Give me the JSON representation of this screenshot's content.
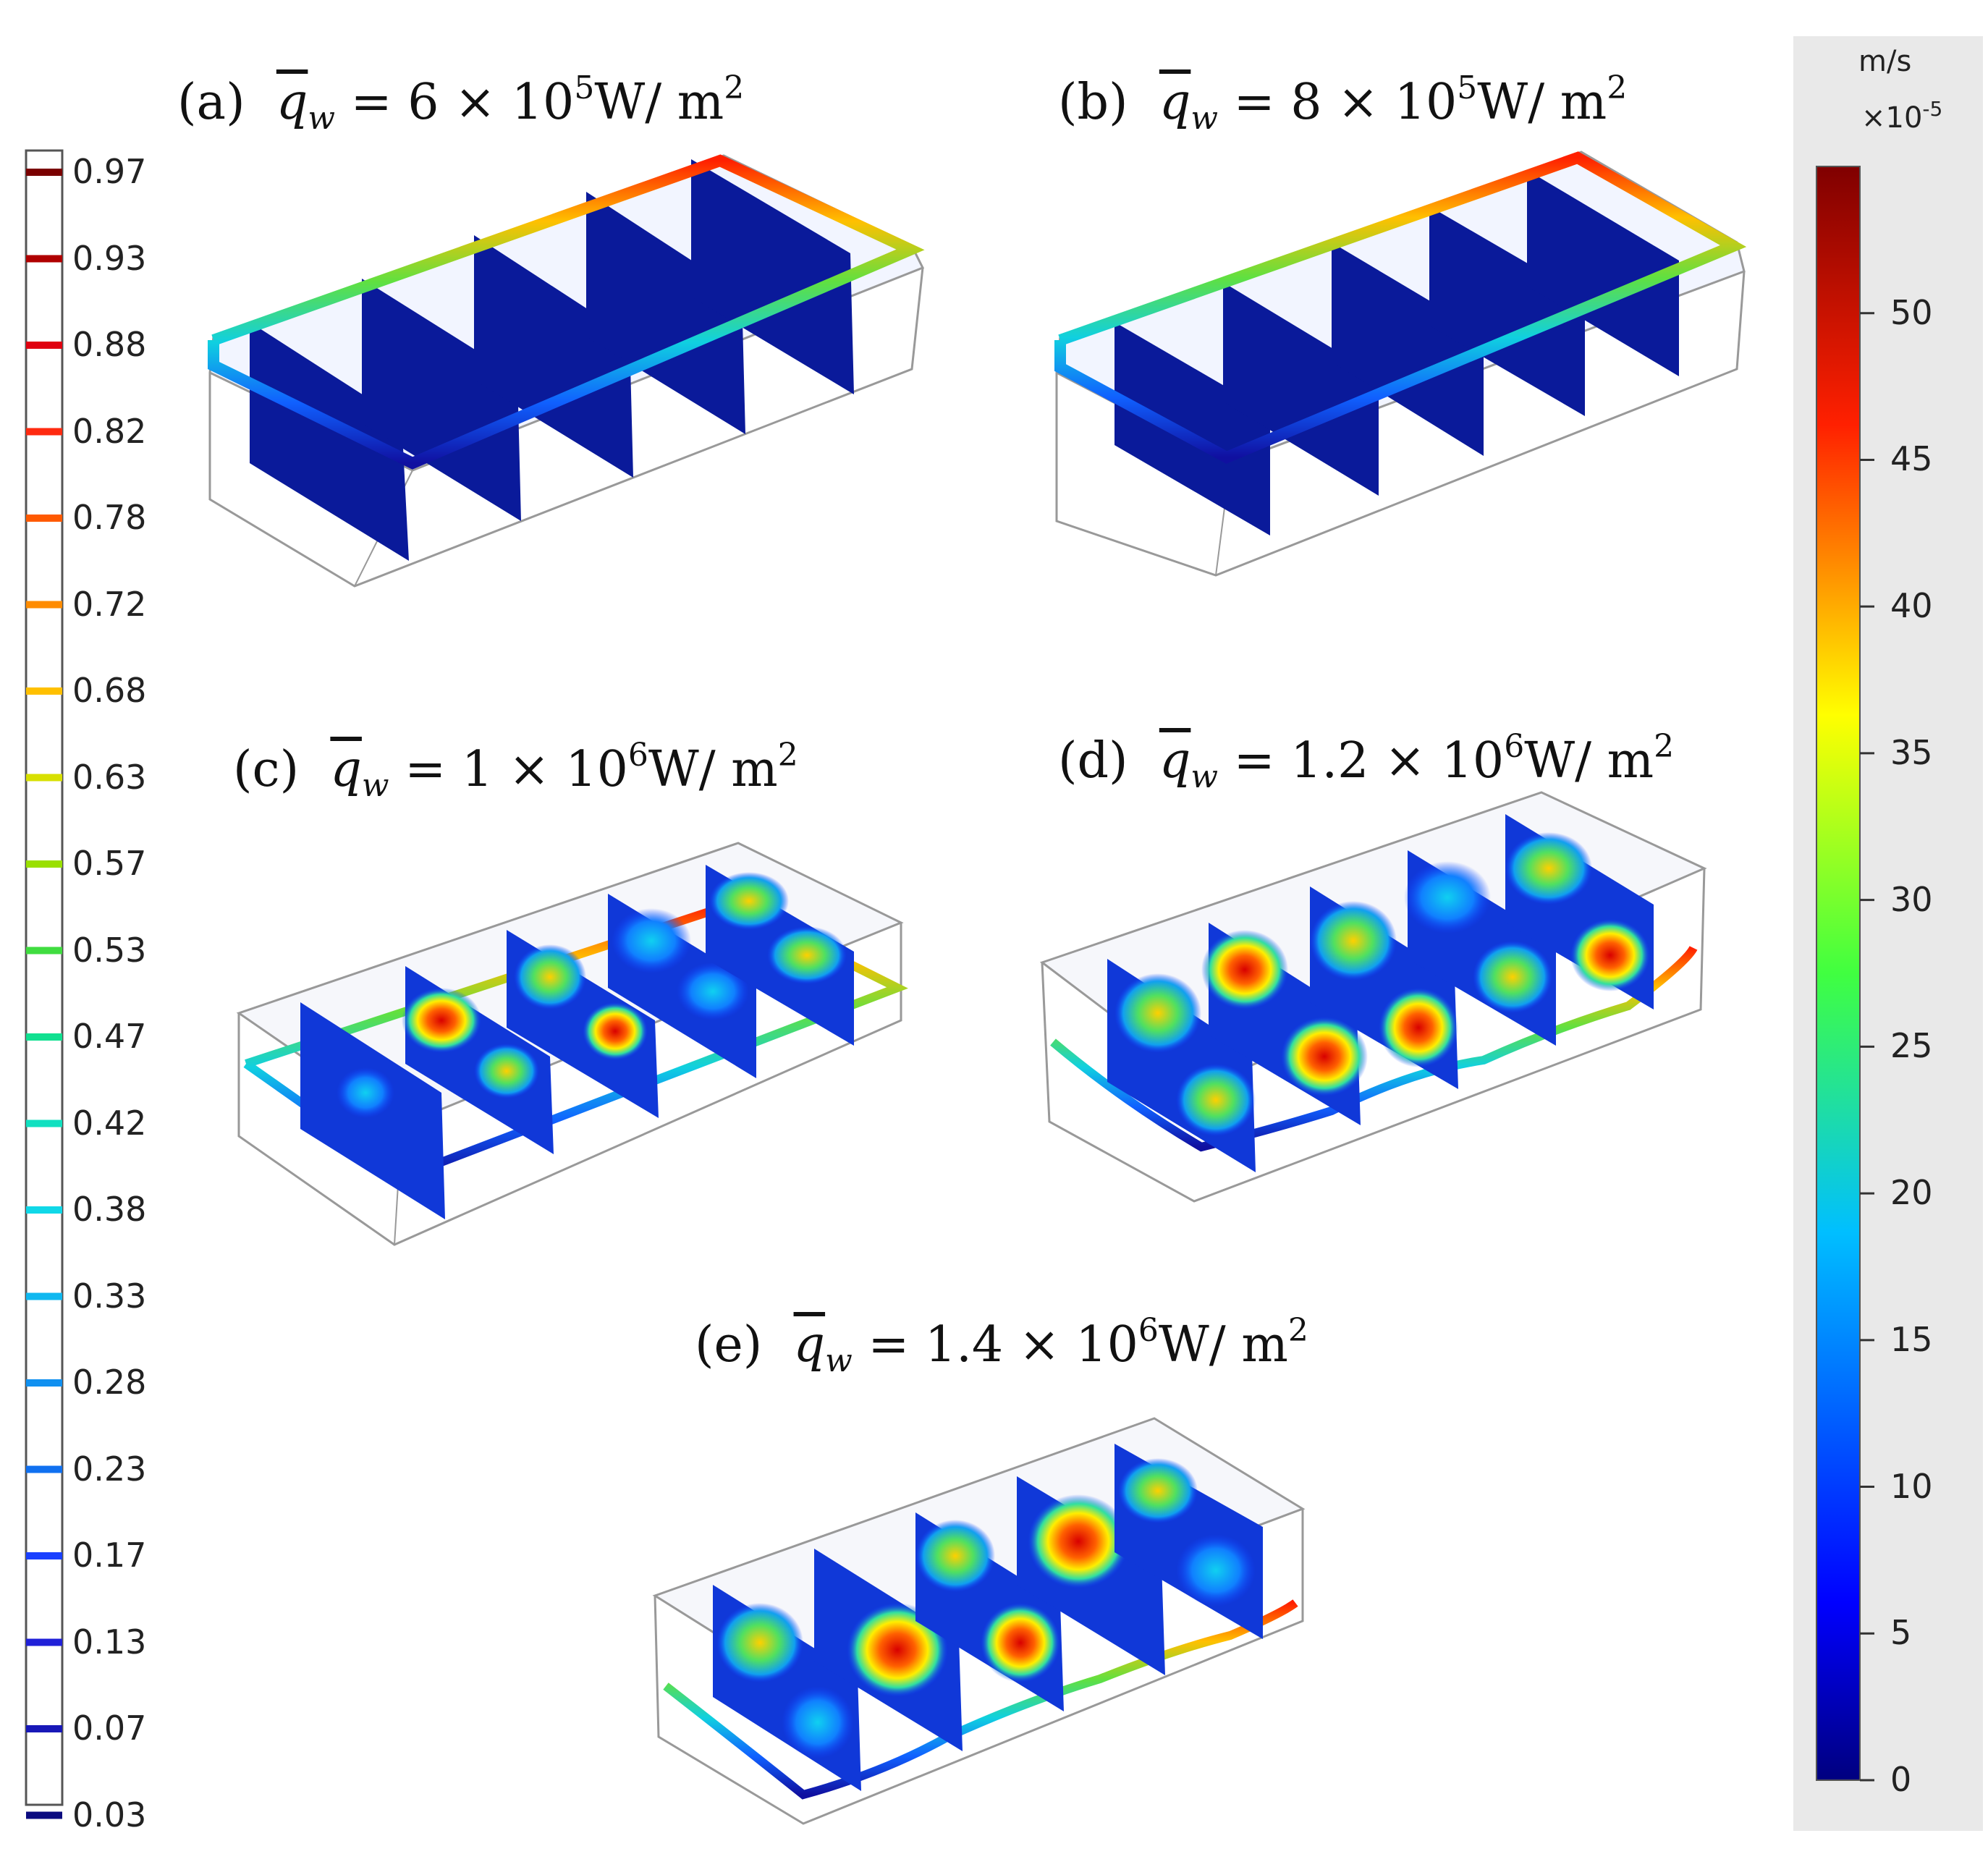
{
  "panels": [
    {
      "id": "a",
      "label": "(a)",
      "q_mantissa": "6",
      "q_exp": "5",
      "state": "top-band"
    },
    {
      "id": "b",
      "label": "(b)",
      "q_mantissa": "8",
      "q_exp": "5",
      "state": "top-band"
    },
    {
      "id": "c",
      "label": "(c)",
      "q_mantissa": "1",
      "q_exp": "6",
      "state": "developing"
    },
    {
      "id": "d",
      "label": "(d)",
      "q_mantissa": "1.2",
      "q_exp": "6",
      "state": "convective"
    },
    {
      "id": "e",
      "label": "(e)",
      "q_mantissa": "1.4",
      "q_exp": "6",
      "state": "convective"
    }
  ],
  "formula": {
    "q_symbol": "q",
    "q_subscript": "w",
    "equals": "=",
    "times": "×",
    "base": "10",
    "unit_prefix": "W/ m",
    "unit_exp": "2"
  },
  "contour_legend": {
    "values": [
      "0.97",
      "0.93",
      "0.88",
      "0.82",
      "0.78",
      "0.72",
      "0.68",
      "0.63",
      "0.57",
      "0.53",
      "0.47",
      "0.42",
      "0.38",
      "0.33",
      "0.28",
      "0.23",
      "0.17",
      "0.13",
      "0.07",
      "0.03"
    ],
    "colors": [
      "#7a0000",
      "#b00000",
      "#e00010",
      "#ff2a10",
      "#ff5a00",
      "#ff8c00",
      "#ffc000",
      "#d8e000",
      "#9ae000",
      "#40dd40",
      "#10e090",
      "#10e0c0",
      "#10d8e8",
      "#10b8f0",
      "#1090f0",
      "#1070f0",
      "#1a40ff",
      "#2020d8",
      "#1818b8",
      "#0b0b80"
    ]
  },
  "colorbar": {
    "unit": "m/s",
    "scale_prefix": "×10",
    "scale_exp": "-5",
    "ticks": [
      "50",
      "45",
      "40",
      "35",
      "30",
      "25",
      "20",
      "15",
      "10",
      "5",
      "0"
    ],
    "min": 0,
    "max": 55
  }
}
